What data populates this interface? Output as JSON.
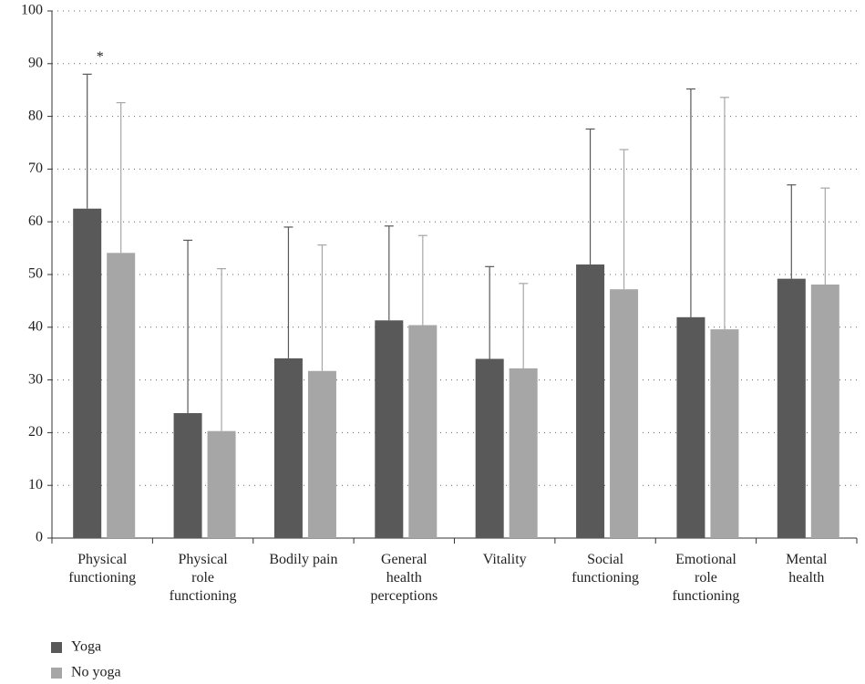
{
  "chart_data": {
    "type": "bar",
    "categories": [
      "Physical\nfunctioning",
      "Physical\nrole\nfunctioning",
      "Bodily pain",
      "General\nhealth\nperceptions",
      "Vitality",
      "Social\nfunctioning",
      "Emotional\nrole\nfunctioning",
      "Mental\nhealth"
    ],
    "series": [
      {
        "name": "Yoga",
        "color": "#595959",
        "values": [
          62.5,
          23.7,
          34.1,
          41.3,
          34.0,
          51.9,
          41.9,
          49.2
        ],
        "errors": [
          25.5,
          32.8,
          24.9,
          17.9,
          17.5,
          25.7,
          43.3,
          17.8
        ]
      },
      {
        "name": "No yoga",
        "color": "#a6a6a6",
        "values": [
          54.1,
          20.3,
          31.7,
          40.4,
          32.2,
          47.2,
          39.6,
          48.1
        ],
        "errors": [
          28.5,
          30.8,
          23.9,
          17.0,
          16.1,
          26.5,
          44.0,
          18.3
        ]
      }
    ],
    "annotation": "*",
    "ylim": [
      0,
      100
    ],
    "yticks": [
      0,
      10,
      20,
      30,
      40,
      50,
      60,
      70,
      80,
      90,
      100
    ],
    "grid": true
  }
}
